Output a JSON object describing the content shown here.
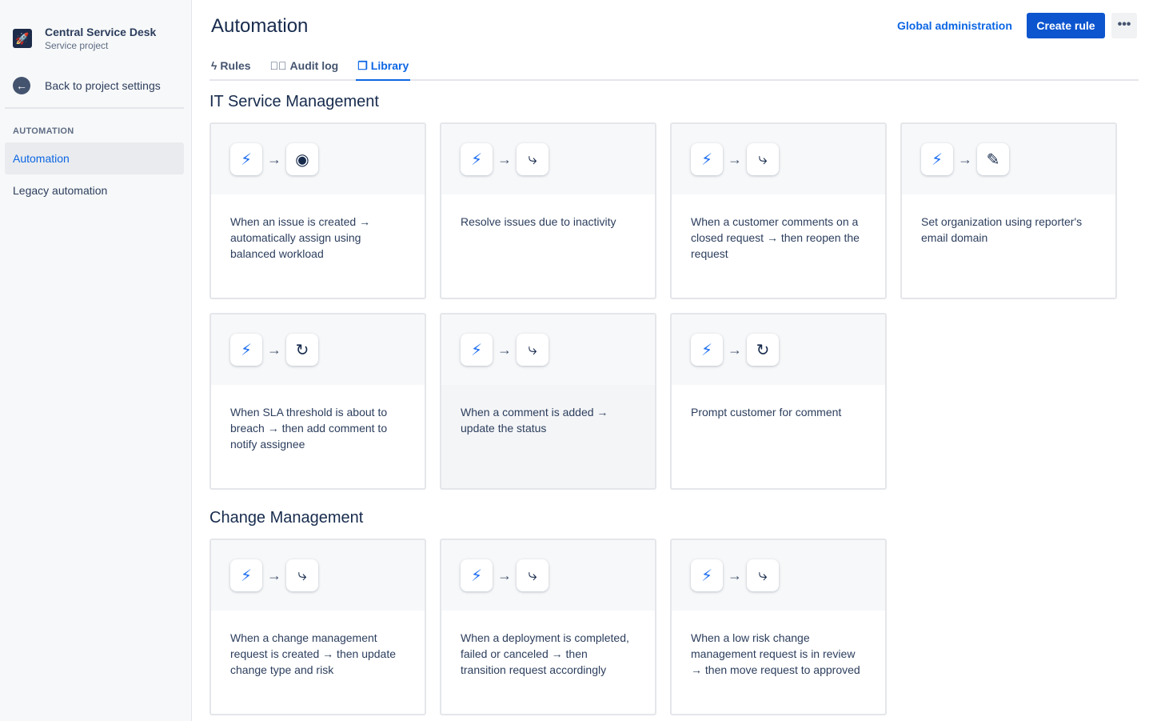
{
  "sidebar": {
    "project_name": "Central Service Desk",
    "project_type": "Service project",
    "back": "Back to project settings",
    "section": "AUTOMATION",
    "items": [
      {
        "label": "Automation",
        "active": true
      },
      {
        "label": "Legacy automation"
      }
    ]
  },
  "header": {
    "title": "Automation",
    "global_admin": "Global administration",
    "create_rule": "Create rule",
    "more": "•••"
  },
  "tabs": [
    {
      "label": "Rules",
      "icon": "bolt-icon"
    },
    {
      "label": "Audit log",
      "icon": "check-circle-icon"
    },
    {
      "label": "Library",
      "icon": "copy-icon",
      "active": true
    }
  ],
  "sections": [
    {
      "title": "IT Service Management",
      "cards": [
        {
          "action": "user",
          "text": "When an issue is created → automatically assign using balanced workload"
        },
        {
          "action": "branch",
          "text": "Resolve issues due to inactivity"
        },
        {
          "action": "branch",
          "text": "When a customer comments on a closed request → then reopen the request"
        },
        {
          "action": "edit",
          "text": "Set organization using reporter's email domain"
        },
        {
          "action": "comment",
          "text": "When SLA threshold is about to breach → then add comment to notify assignee"
        },
        {
          "action": "branch",
          "text": "When a comment is added → update the status"
        },
        {
          "action": "comment",
          "text": "Prompt customer for comment"
        }
      ]
    },
    {
      "title": "Change Management",
      "cards": [
        {
          "action": "branch",
          "text": "When a change management request is created → then update change type and risk"
        },
        {
          "action": "branch",
          "text": "When a deployment is completed, failed or canceled → then transition request accordingly"
        },
        {
          "action": "branch",
          "text": "When a low risk change management request is in review → then move request to approved"
        }
      ]
    }
  ]
}
